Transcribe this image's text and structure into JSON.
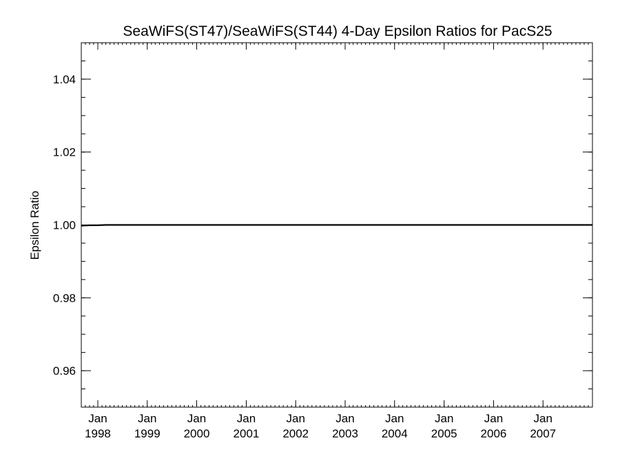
{
  "chart_data": {
    "type": "line",
    "title": "SeaWiFS(ST47)/SeaWiFS(ST44) 4-Day Epsilon Ratios for PacS25",
    "xlabel": "",
    "ylabel": "Epsilon Ratio",
    "ylim": [
      0.95,
      1.05
    ],
    "xlim": [
      "1997-09-01",
      "2008-01-01"
    ],
    "y_ticks": [
      {
        "value": 0.96,
        "label": "0.96"
      },
      {
        "value": 0.98,
        "label": "0.98"
      },
      {
        "value": 1.0,
        "label": "1.00"
      },
      {
        "value": 1.02,
        "label": "1.02"
      },
      {
        "value": 1.04,
        "label": "1.04"
      }
    ],
    "x_ticks": [
      {
        "date": "1998-01-01",
        "month": "Jan",
        "year": "1998"
      },
      {
        "date": "1999-01-01",
        "month": "Jan",
        "year": "1999"
      },
      {
        "date": "2000-01-01",
        "month": "Jan",
        "year": "2000"
      },
      {
        "date": "2001-01-01",
        "month": "Jan",
        "year": "2001"
      },
      {
        "date": "2002-01-01",
        "month": "Jan",
        "year": "2002"
      },
      {
        "date": "2003-01-01",
        "month": "Jan",
        "year": "2003"
      },
      {
        "date": "2004-01-01",
        "month": "Jan",
        "year": "2004"
      },
      {
        "date": "2005-01-01",
        "month": "Jan",
        "year": "2005"
      },
      {
        "date": "2006-01-01",
        "month": "Jan",
        "year": "2006"
      },
      {
        "date": "2007-01-01",
        "month": "Jan",
        "year": "2007"
      }
    ],
    "series": [
      {
        "color": "#000000",
        "x": [
          "1997-09-01",
          "1997-11-01",
          "1998-01-01",
          "1998-03-01",
          "1998-06-01",
          "1999-01-01",
          "2000-01-01",
          "2001-01-01",
          "2002-01-01",
          "2003-01-01",
          "2004-01-01",
          "2005-01-01",
          "2006-01-01",
          "2007-01-01",
          "2008-01-01"
        ],
        "y": [
          0.9998,
          0.9999,
          0.9999,
          1.0,
          1.0,
          1.0,
          1.0,
          1.0,
          1.0,
          1.0,
          1.0,
          1.0,
          1.0,
          1.0,
          1.0
        ]
      }
    ],
    "grid": false,
    "legend": "none"
  }
}
